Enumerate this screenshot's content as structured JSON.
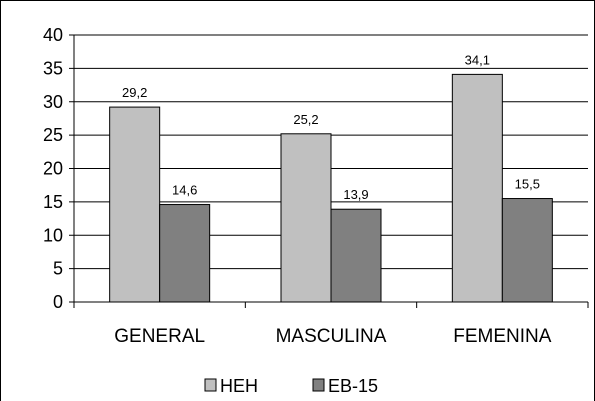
{
  "chart_data": {
    "type": "bar",
    "categories": [
      "GENERAL",
      "MASCULINA",
      "FEMENINA"
    ],
    "series": [
      {
        "name": "HEH",
        "values": [
          29.2,
          25.2,
          34.1
        ],
        "labels": [
          "29,2",
          "25,2",
          "34,1"
        ],
        "color": "#c0c0c0"
      },
      {
        "name": "EB-15",
        "values": [
          14.6,
          13.9,
          15.5
        ],
        "labels": [
          "14,6",
          "13,9",
          "15,5"
        ],
        "color": "#808080"
      }
    ],
    "title": "",
    "xlabel": "",
    "ylabel": "",
    "ylim": [
      0,
      40
    ],
    "yticks": [
      0,
      5,
      10,
      15,
      20,
      25,
      30,
      35,
      40
    ],
    "grid": true,
    "legend": "bottom"
  }
}
